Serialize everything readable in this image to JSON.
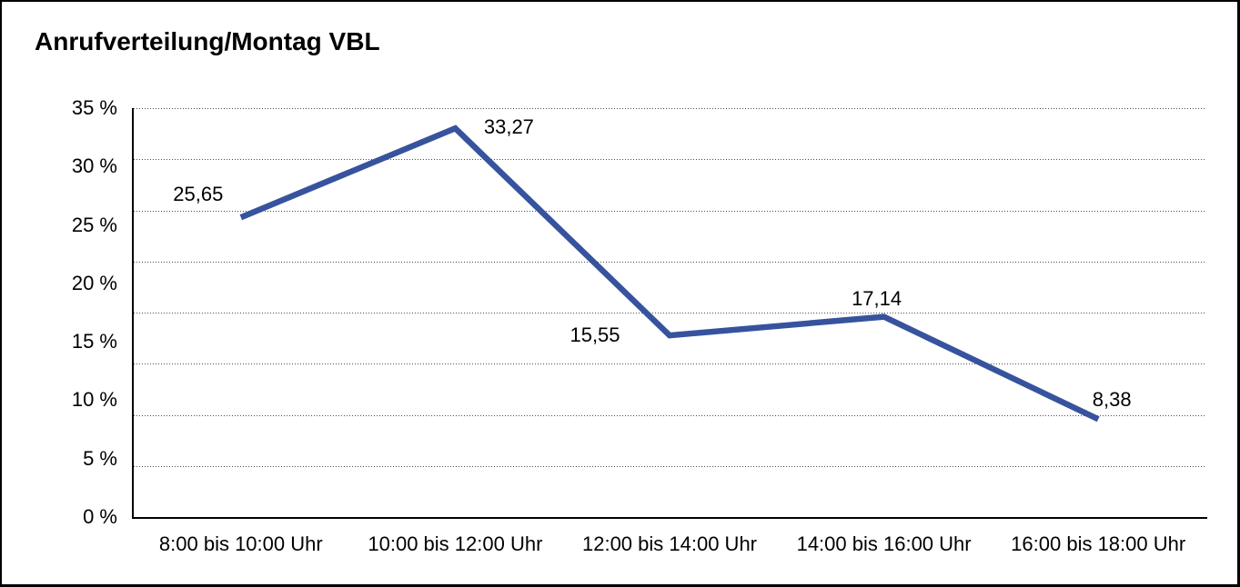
{
  "title": "Anrufverteilung/Montag VBL",
  "chart_data": {
    "type": "line",
    "title": "Anrufverteilung/Montag VBL",
    "categories": [
      "8:00 bis 10:00 Uhr",
      "10:00 bis 12:00 Uhr",
      "12:00 bis 14:00 Uhr",
      "14:00 bis 16:00 Uhr",
      "16:00 bis 18:00 Uhr"
    ],
    "values": [
      25.65,
      33.27,
      15.55,
      17.14,
      8.38
    ],
    "value_labels": [
      "25,65",
      "33,27",
      "15,55",
      "17,14",
      "8,38"
    ],
    "y_tick_labels": [
      "35 %",
      "30 %",
      "25 %",
      "20 %",
      "15 %",
      "10 %",
      "5 %",
      "0 %"
    ],
    "ylim": [
      0,
      35
    ],
    "grid_divisions": 8,
    "grid_style": "dotted horizontal",
    "legend": "none",
    "line_color": "#37539D",
    "axis_color": "#000000",
    "text_color": "#000000"
  }
}
